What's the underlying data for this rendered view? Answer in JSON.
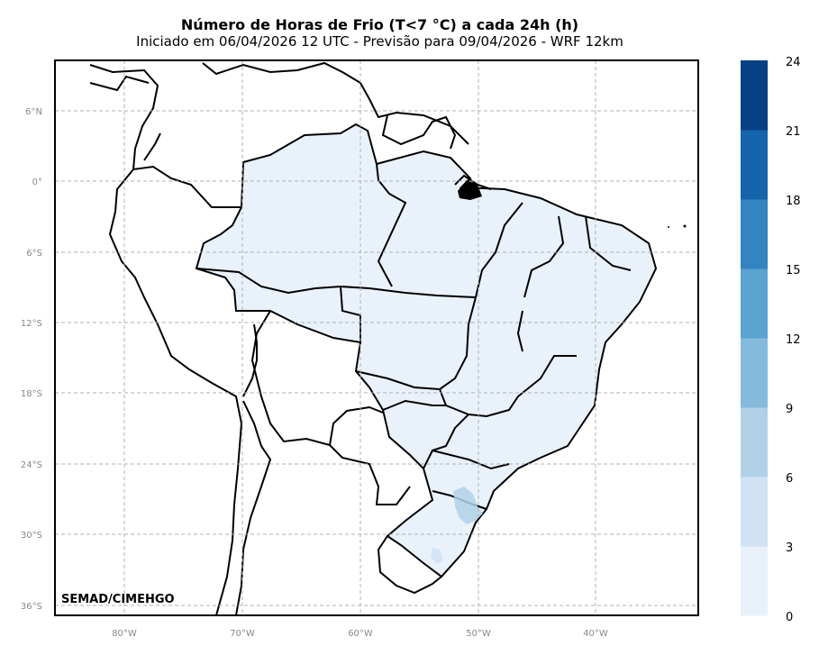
{
  "title": "Número de Horas de Frio (T<7 °C) a cada 24h (h)",
  "subtitle": "Iniciado em 06/04/2026 12 UTC - Previsão para 09/04/2026 - WRF 12km",
  "credit": "SEMAD/CIMEHGO",
  "lat_ticks": [
    "6°N",
    "0°",
    "6°S",
    "12°S",
    "18°S",
    "24°S",
    "30°S",
    "36°S"
  ],
  "lon_ticks": [
    "80°W",
    "70°W",
    "60°W",
    "50°W",
    "40°W"
  ],
  "colorbar": {
    "labels": [
      "0",
      "3",
      "6",
      "9",
      "12",
      "15",
      "18",
      "21",
      "24"
    ],
    "colors": [
      "#e9f2fb",
      "#d0e2f3",
      "#b1d1e8",
      "#84bbdc",
      "#5ba3d0",
      "#3384c1",
      "#1664ab",
      "#084086"
    ]
  }
}
